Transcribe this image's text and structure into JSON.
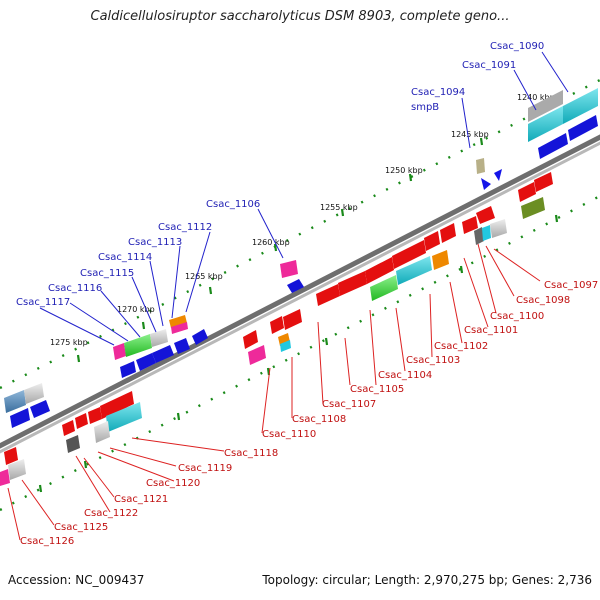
{
  "header": {
    "title": "Caldicellulosiruptor saccharolyticus DSM 8903, complete geno..."
  },
  "footer": {
    "accession": "Accession: NC_009437",
    "summary": "Topology: circular; Length: 2,970,275 bp; Genes: 2,736"
  },
  "map": {
    "kbp_labels": [
      "1240 kbp",
      "1245 kbp",
      "1250 kbp",
      "1255 kbp",
      "1260 kbp",
      "1265 kbp",
      "1270 kbp",
      "1275 kbp"
    ],
    "top_labels": [
      "Csac_1090",
      "Csac_1091",
      "Csac_1094",
      "smpB",
      "Csac_1106",
      "Csac_1112",
      "Csac_1113",
      "Csac_1114",
      "Csac_1115",
      "Csac_1116",
      "Csac_1117"
    ],
    "bottom_labels": [
      "Csac_1097",
      "Csac_1098",
      "Csac_1100",
      "Csac_1101",
      "Csac_1102",
      "Csac_1103",
      "Csac_1104",
      "Csac_1105",
      "Csac_1107",
      "Csac_1108",
      "Csac_1110",
      "Csac_1118",
      "Csac_1119",
      "Csac_1120",
      "Csac_1121",
      "Csac_1122",
      "Csac_1125",
      "Csac_1126"
    ]
  },
  "colors": {
    "forward_cds": "#0a0ae0",
    "reverse_cds": "#e00000",
    "backbone": "#8a8a8a"
  }
}
